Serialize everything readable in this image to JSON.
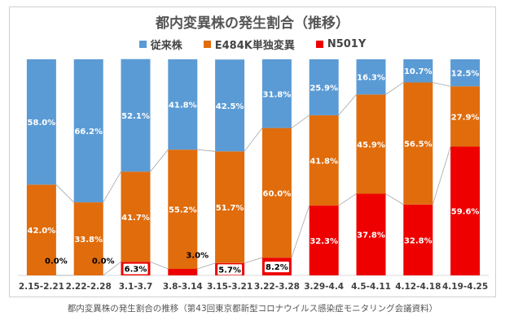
{
  "caption": "都内変異株の発生割合の推移（第43回東京都新型コロナウイルス感染症モニタリング会議資料）",
  "colors": {
    "従来株": "#5b9bd5",
    "E484K単独変異": "#e06c0c",
    "N501Y": "#ee0000"
  },
  "chart_data": {
    "type": "bar",
    "stacked": true,
    "percent_stacked": true,
    "title": "都内変異株の発生割合（推移）",
    "legend_position": "top",
    "categories": [
      "2.15-2.21",
      "2.22-2.28",
      "3.1-3.7",
      "3.8-3.14",
      "3.15-3.21",
      "3.22-3.28",
      "3.29-4.4",
      "4.5-4.11",
      "4.12-4.18",
      "4.19-4.25"
    ],
    "series": [
      {
        "name": "N501Y",
        "values": [
          0.0,
          0.0,
          6.3,
          3.0,
          5.7,
          8.2,
          32.3,
          37.8,
          32.8,
          59.6
        ],
        "labels": [
          "0.0%",
          "0.0%",
          "6.3%",
          "3.0%",
          "5.7%",
          "8.2%",
          "32.3%",
          "37.8%",
          "32.8%",
          "59.6%"
        ]
      },
      {
        "name": "E484K単独変異",
        "values": [
          42.0,
          33.8,
          41.7,
          55.2,
          51.7,
          60.0,
          41.8,
          45.9,
          56.5,
          27.9
        ],
        "labels": [
          "42.0%",
          "33.8%",
          "41.7%",
          "55.2%",
          "51.7%",
          "60.0%",
          "41.8%",
          "45.9%",
          "56.5%",
          "27.9%"
        ]
      },
      {
        "name": "従来株",
        "values": [
          58.0,
          66.2,
          52.1,
          41.8,
          42.5,
          31.8,
          25.9,
          16.3,
          10.7,
          12.5
        ],
        "labels": [
          "58.0%",
          "66.2%",
          "52.1%",
          "41.8%",
          "42.5%",
          "31.8%",
          "25.9%",
          "16.3%",
          "10.7%",
          "12.5%"
        ]
      }
    ],
    "legend_order": [
      "従来株",
      "E484K単独変異",
      "N501Y"
    ],
    "ylim": [
      0,
      100
    ]
  }
}
